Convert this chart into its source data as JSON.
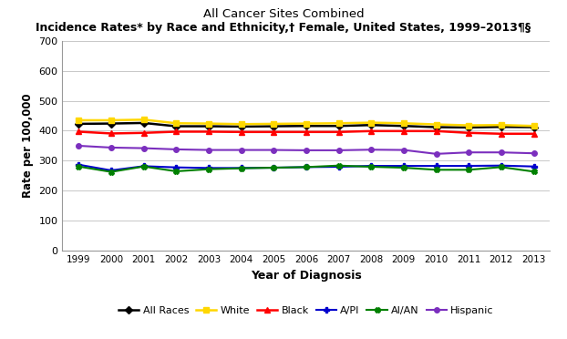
{
  "title_line1": "All Cancer Sites Combined",
  "title_line2": "Incidence Rates* by Race and Ethnicity,† Female, United States, 1999–2013¶§",
  "xlabel": "Year of Diagnosis",
  "ylabel": "Rate per 100,000",
  "years": [
    1999,
    2000,
    2001,
    2002,
    2003,
    2004,
    2005,
    2006,
    2007,
    2008,
    2009,
    2010,
    2011,
    2012,
    2013
  ],
  "ylim": [
    0,
    700
  ],
  "yticks": [
    0,
    100,
    200,
    300,
    400,
    500,
    600,
    700
  ],
  "series": {
    "All Races": {
      "values": [
        423,
        424,
        426,
        415,
        415,
        414,
        415,
        416,
        416,
        419,
        416,
        412,
        411,
        413,
        412
      ],
      "color": "#000000",
      "marker": "D",
      "markersize": 4,
      "linewidth": 1.8
    },
    "White": {
      "values": [
        435,
        435,
        437,
        425,
        424,
        422,
        423,
        424,
        425,
        427,
        425,
        421,
        418,
        419,
        416
      ],
      "color": "#FFD700",
      "marker": "s",
      "markersize": 4,
      "linewidth": 1.8
    },
    "Black": {
      "values": [
        397,
        391,
        393,
        397,
        397,
        396,
        396,
        396,
        396,
        399,
        399,
        399,
        393,
        390,
        390
      ],
      "color": "#FF0000",
      "marker": "^",
      "markersize": 4,
      "linewidth": 1.8
    },
    "A/PI": {
      "values": [
        287,
        268,
        282,
        278,
        276,
        276,
        277,
        279,
        280,
        283,
        283,
        283,
        283,
        284,
        281
      ],
      "color": "#0000CD",
      "marker": "P",
      "markersize": 4,
      "linewidth": 1.5
    },
    "AI/AN": {
      "values": [
        281,
        263,
        281,
        265,
        272,
        275,
        277,
        279,
        284,
        280,
        277,
        270,
        270,
        279,
        264
      ],
      "color": "#008000",
      "marker": "X",
      "markersize": 4,
      "linewidth": 1.5
    },
    "Hispanic": {
      "values": [
        350,
        344,
        342,
        338,
        336,
        336,
        336,
        335,
        335,
        337,
        336,
        323,
        328,
        328,
        325
      ],
      "color": "#7B2FBE",
      "marker": "o",
      "markersize": 4,
      "linewidth": 1.5
    }
  },
  "legend_order": [
    "All Races",
    "White",
    "Black",
    "A/PI",
    "AI/AN",
    "Hispanic"
  ],
  "background_color": "#FFFFFF",
  "grid_color": "#C8C8C8"
}
